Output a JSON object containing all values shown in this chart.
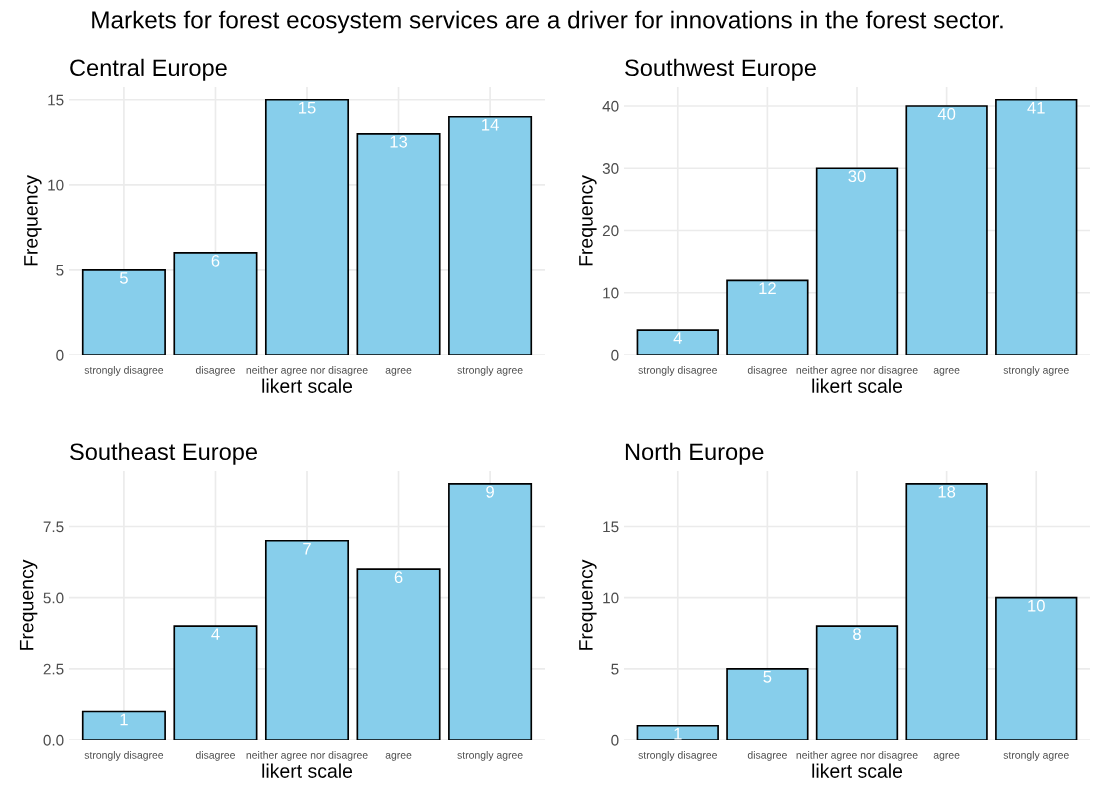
{
  "chart_data": [
    {
      "type": "bar",
      "title": "Central Europe",
      "xlabel": "likert scale",
      "ylabel": "Frequency",
      "categories": [
        "strongly disagree",
        "disagree",
        "neither agree nor disagree",
        "agree",
        "strongly agree"
      ],
      "values": [
        5,
        6,
        15,
        13,
        14
      ],
      "color": "#87ceeb",
      "ylim": [
        0,
        15.75
      ],
      "yticks": [
        0,
        5,
        10,
        15
      ],
      "grid": true,
      "data_labels": true,
      "annotations": [
        "Markets for forest ecosystem services are a driver for innovations in the forest sector."
      ]
    },
    {
      "type": "bar",
      "title": "Southwest Europe",
      "xlabel": "likert scale",
      "ylabel": "Frequency",
      "categories": [
        "strongly disagree",
        "disagree",
        "neither agree nor disagree",
        "agree",
        "strongly agree"
      ],
      "values": [
        4,
        12,
        30,
        40,
        41
      ],
      "color": "#87ceeb",
      "ylim": [
        0,
        43.05
      ],
      "yticks": [
        0,
        10,
        20,
        30,
        40
      ],
      "grid": true,
      "data_labels": true
    },
    {
      "type": "bar",
      "title": "Southeast Europe",
      "xlabel": "likert scale",
      "ylabel": "Frequency",
      "categories": [
        "strongly disagree",
        "disagree",
        "neither agree nor disagree",
        "agree",
        "strongly agree"
      ],
      "values": [
        1,
        4,
        7,
        6,
        9
      ],
      "color": "#87ceeb",
      "ylim": [
        0,
        9.45
      ],
      "yticks": [
        {
          "value": 0,
          "label": "0.0"
        },
        {
          "value": 2.5,
          "label": "2.5"
        },
        {
          "value": 5,
          "label": "5.0"
        },
        {
          "value": 7.5,
          "label": "7.5"
        }
      ],
      "grid": true,
      "data_labels": true
    },
    {
      "type": "bar",
      "title": "North Europe",
      "xlabel": "likert scale",
      "ylabel": "Frequency",
      "categories": [
        "strongly disagree",
        "disagree",
        "neither agree nor disagree",
        "agree",
        "strongly agree"
      ],
      "values": [
        1,
        5,
        8,
        18,
        10
      ],
      "color": "#87ceeb",
      "ylim": [
        0,
        18.9
      ],
      "yticks": [
        0,
        5,
        10,
        15
      ],
      "grid": true,
      "data_labels": true
    }
  ]
}
